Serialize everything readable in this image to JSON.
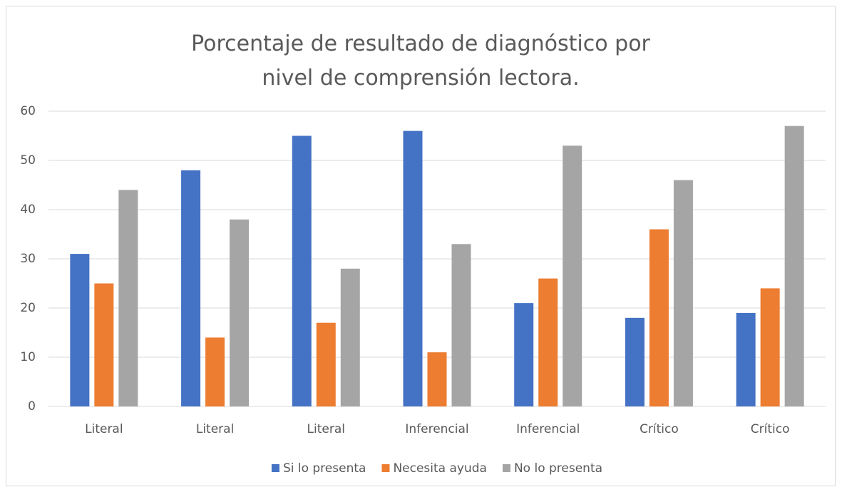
{
  "chart_data": {
    "type": "bar",
    "title": "Porcentaje de resultado de diagnóstico por nivel de comprensión lectora.",
    "categories": [
      "Literal",
      "Literal",
      "Literal",
      "Inferencial",
      "Inferencial",
      "Crítico",
      "Crítico"
    ],
    "series": [
      {
        "name": "Si lo presenta",
        "color": "#4472c4",
        "values": [
          31,
          48,
          55,
          56,
          21,
          18,
          19
        ]
      },
      {
        "name": "Necesita ayuda",
        "color": "#ed7d31",
        "values": [
          25,
          14,
          17,
          11,
          26,
          36,
          24
        ]
      },
      {
        "name": "No lo presenta",
        "color": "#a5a5a5",
        "values": [
          44,
          38,
          28,
          33,
          53,
          46,
          57
        ]
      }
    ],
    "ylim": [
      0,
      60
    ],
    "yticks": [
      0,
      10,
      20,
      30,
      40,
      50,
      60
    ],
    "grid": true,
    "legend": "bottom"
  }
}
